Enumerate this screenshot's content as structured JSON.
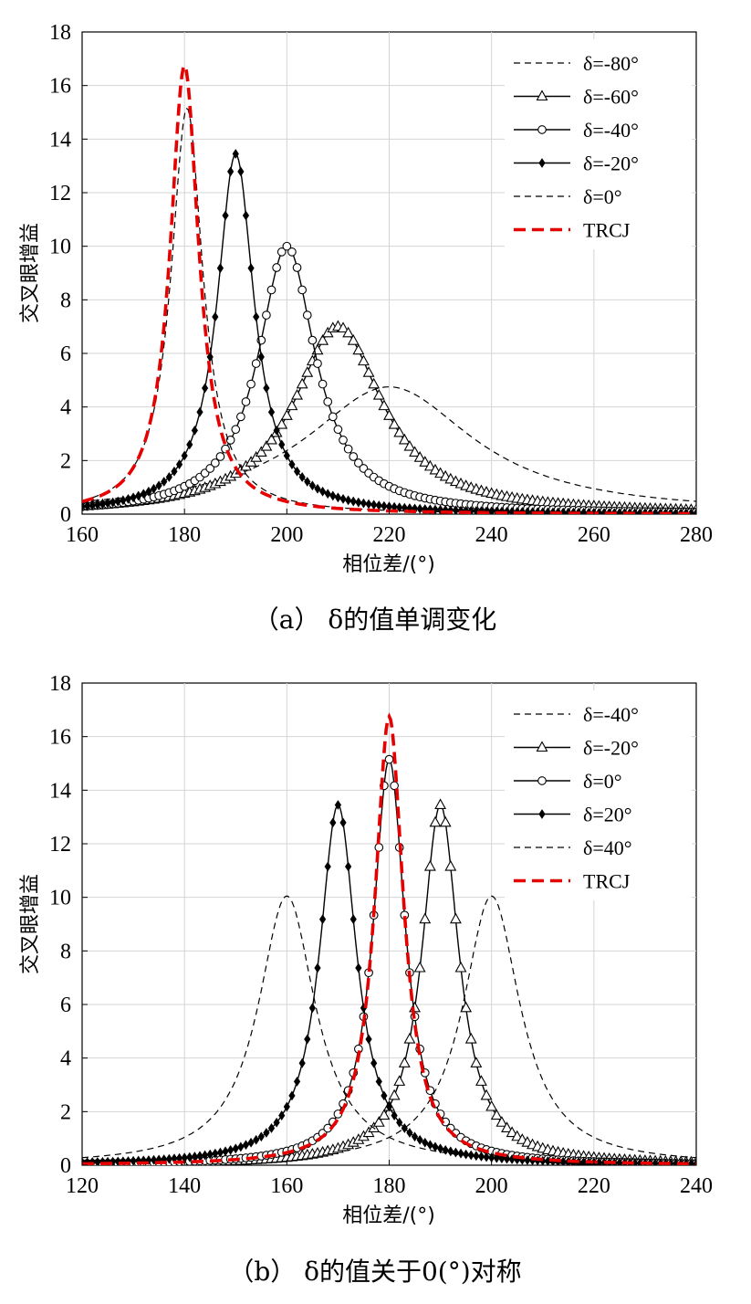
{
  "chart_data": [
    {
      "type": "line",
      "caption": "（a） δ的值单调变化",
      "xlabel": "相位差/(°)",
      "ylabel": "交叉眼增益",
      "xlim": [
        160,
        280
      ],
      "ylim": [
        0,
        18
      ],
      "xticks": [
        160,
        180,
        200,
        220,
        240,
        260,
        280
      ],
      "yticks": [
        0,
        2,
        4,
        6,
        8,
        10,
        12,
        14,
        16,
        18
      ],
      "grid": true,
      "legend_position": "top-right",
      "series": [
        {
          "name": "δ=-80°",
          "style": "dash-black",
          "marker": "none",
          "center": 220,
          "peak": 4.75,
          "hw": 20
        },
        {
          "name": "δ=-60°",
          "style": "solid-black",
          "marker": "triangle",
          "center": 210,
          "peak": 7.0,
          "hw": 10.5
        },
        {
          "name": "δ=-40°",
          "style": "solid-black",
          "marker": "circle",
          "center": 200,
          "peak": 10.0,
          "hw": 6.8
        },
        {
          "name": "δ=-20°",
          "style": "solid-black",
          "marker": "diamond",
          "center": 190,
          "peak": 13.45,
          "hw": 4.4
        },
        {
          "name": "δ=0°",
          "style": "dash-black",
          "marker": "none",
          "center": 180.5,
          "peak": 15.15,
          "hw": 3.8
        },
        {
          "name": "TRCJ",
          "style": "dash-red",
          "marker": "none",
          "center": 180,
          "peak": 16.75,
          "hw": 3.4
        }
      ]
    },
    {
      "type": "line",
      "caption": "（b） δ的值关于0(°)对称",
      "xlabel": "相位差/(°)",
      "ylabel": "交叉眼增益",
      "xlim": [
        120,
        240
      ],
      "ylim": [
        0,
        18
      ],
      "xticks": [
        120,
        140,
        160,
        180,
        200,
        220,
        240
      ],
      "yticks": [
        0,
        2,
        4,
        6,
        8,
        10,
        12,
        14,
        16,
        18
      ],
      "grid": true,
      "legend_position": "top-right",
      "series": [
        {
          "name": "δ=-40°",
          "style": "dash-black",
          "marker": "none",
          "center": 200,
          "peak": 10.05,
          "hw": 6.8
        },
        {
          "name": "δ=-20°",
          "style": "solid-black",
          "marker": "triangle",
          "center": 190,
          "peak": 13.45,
          "hw": 4.4
        },
        {
          "name": "δ=0°",
          "style": "solid-black",
          "marker": "circle",
          "center": 180,
          "peak": 15.15,
          "hw": 3.8
        },
        {
          "name": "δ=20°",
          "style": "solid-black",
          "marker": "diamond",
          "center": 170,
          "peak": 13.45,
          "hw": 4.4
        },
        {
          "name": "δ=40°",
          "style": "dash-black",
          "marker": "none",
          "center": 160,
          "peak": 10.05,
          "hw": 6.8
        },
        {
          "name": "TRCJ",
          "style": "dash-red",
          "marker": "none",
          "center": 180,
          "peak": 16.75,
          "hw": 3.4
        }
      ]
    }
  ]
}
